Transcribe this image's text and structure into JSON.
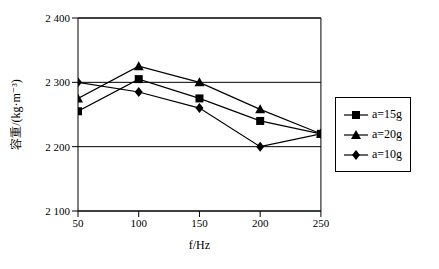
{
  "chart_data": {
    "type": "line",
    "x_label": "f/Hz",
    "y_label": "容重/(kg·m⁻³)",
    "x": [
      50,
      100,
      150,
      200,
      250
    ],
    "xlim": [
      50,
      250
    ],
    "xticks": [
      50,
      100,
      150,
      200,
      250
    ],
    "ylim": [
      2100,
      2400
    ],
    "yticks": [
      {
        "value": 2100,
        "label": "2 100"
      },
      {
        "value": 2200,
        "label": "2 200"
      },
      {
        "value": 2300,
        "label": "2 300"
      },
      {
        "value": 2400,
        "label": "2 400"
      }
    ],
    "grid": true,
    "legend": "right",
    "series": [
      {
        "name": "a=15g",
        "color": "#000000",
        "marker": "square",
        "values": [
          2255,
          2305,
          2275,
          2240,
          2220
        ]
      },
      {
        "name": "a=20g",
        "color": "#000000",
        "marker": "triangle",
        "values": [
          2275,
          2325,
          2300,
          2258,
          2220
        ]
      },
      {
        "name": "a=10g",
        "color": "#000000",
        "marker": "diamond",
        "values": [
          2300,
          2285,
          2260,
          2200,
          2220
        ]
      }
    ]
  }
}
